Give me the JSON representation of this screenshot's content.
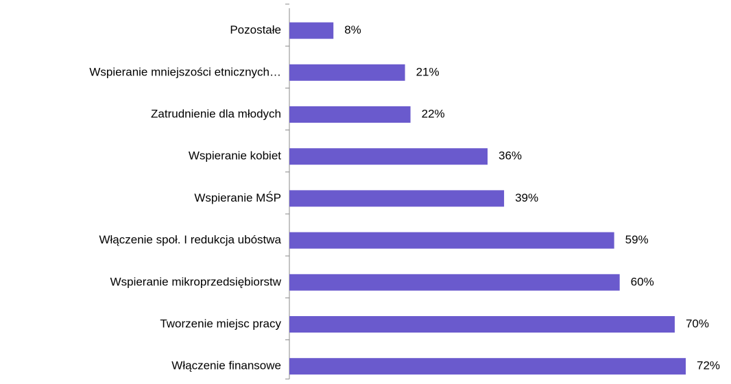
{
  "chart_data": {
    "type": "barh",
    "categories": [
      "Pozostałe",
      "Wspieranie mniejszości etnicznych…",
      "Zatrudnienie dla młodych",
      "Wspieranie kobiet",
      "Wspieranie MŚP",
      "Włączenie społ. I redukcja ubóstwa",
      "Wspieranie mikroprzedsiębiorstw",
      "Tworzenie miejsc pracy",
      "Włączenie finansowe"
    ],
    "values": [
      8,
      21,
      22,
      36,
      39,
      59,
      60,
      70,
      72
    ],
    "value_labels": [
      "8%",
      "21%",
      "22%",
      "36%",
      "39%",
      "59%",
      "60%",
      "70%",
      "72%"
    ],
    "color": "#6a5acd"
  }
}
